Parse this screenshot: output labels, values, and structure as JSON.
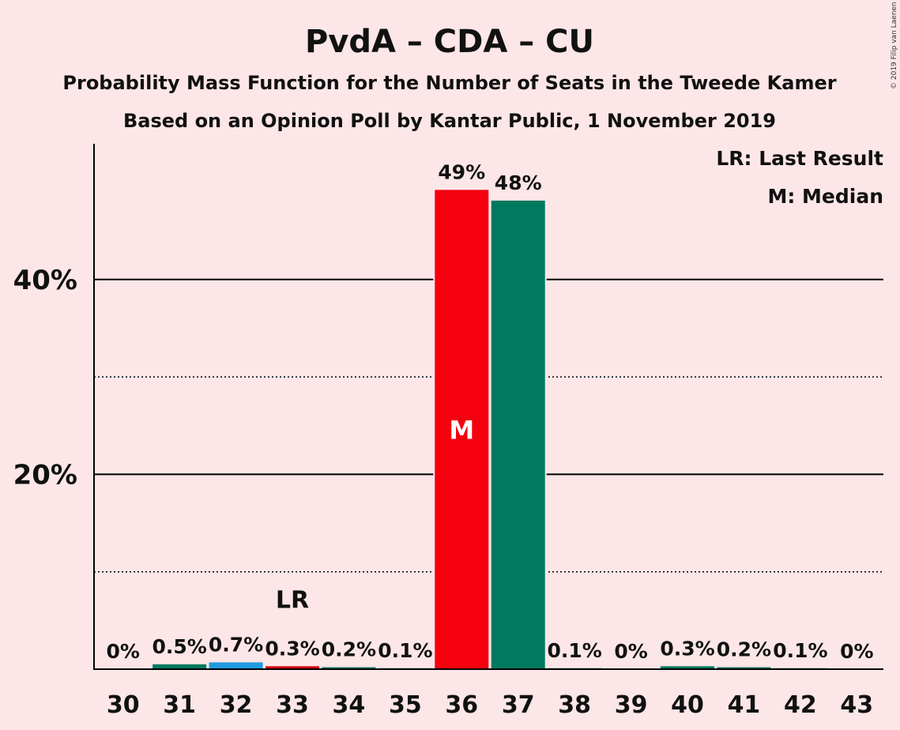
{
  "chart_data": {
    "type": "bar",
    "title": "PvdA – CDA – CU",
    "subtitle_line1": "Probability Mass Function for the Number of Seats in the Tweede Kamer",
    "subtitle_line2": "Based on an Opinion Poll by Kantar Public, 1 November 2019",
    "copyright": "© 2019 Filip van Laenen",
    "legend": {
      "last_result": "LR: Last Result",
      "median": "M: Median",
      "placement": "top-right"
    },
    "categories": [
      "30",
      "31",
      "32",
      "33",
      "34",
      "35",
      "36",
      "37",
      "38",
      "39",
      "40",
      "41",
      "42",
      "43"
    ],
    "values": [
      0,
      0.5,
      0.7,
      0.3,
      0.2,
      0.1,
      49.2,
      48.1,
      0.1,
      0,
      0.3,
      0.2,
      0.1,
      0
    ],
    "value_labels": [
      "0%",
      "0.5%",
      "0.7%",
      "0.3%",
      "0.2%",
      "0.1%",
      "49%",
      "48%",
      "0.1%",
      "0%",
      "0.3%",
      "0.2%",
      "0.1%",
      "0%"
    ],
    "bar_colors": [
      "#007a5e",
      "#007a5e",
      "#1e9be0",
      "#d40010",
      "#007a5e",
      "#007a5e",
      "#f4000f",
      "#007a5e",
      "#007a5e",
      "#007a5e",
      "#007a5e",
      "#007a5e",
      "#007a5e",
      "#007a5e"
    ],
    "last_result_category": "33",
    "last_result_marker": "LR",
    "median_category": "36",
    "median_marker": "M",
    "ylim": [
      0,
      53.5
    ],
    "y_major_ticks": [
      20,
      40
    ],
    "y_tick_labels": [
      "20%",
      "40%"
    ],
    "y_minor_gridlines": [
      10,
      30
    ],
    "grid": true
  }
}
